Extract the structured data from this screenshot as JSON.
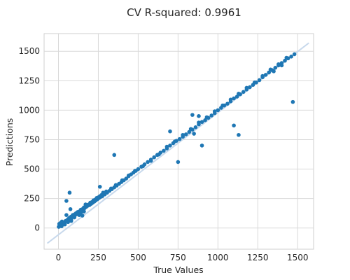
{
  "chart_data": {
    "type": "scatter",
    "title": "CV R-squared: 0.9961",
    "xlabel": "True Values",
    "ylabel": "Predictions",
    "xlim": [
      -90,
      1600
    ],
    "ylim": [
      -180,
      1650
    ],
    "xticks": [
      0,
      250,
      500,
      750,
      1000,
      1250,
      1500
    ],
    "yticks": [
      0,
      250,
      500,
      750,
      1000,
      1250,
      1500
    ],
    "grid": true,
    "reference_line": {
      "x": [
        -70,
        1570
      ],
      "y": [
        -130,
        1570
      ],
      "color": "#c8d9ec"
    },
    "point_color": "#1f77b4",
    "series": [
      {
        "x": [
          2,
          8,
          12,
          18,
          25,
          30,
          35,
          42,
          48,
          55,
          60,
          66,
          72,
          80,
          88,
          95,
          105,
          115,
          125,
          135,
          145,
          155,
          165,
          175,
          185,
          195,
          205,
          215,
          225,
          235,
          245,
          255,
          265,
          275,
          290,
          305,
          320,
          335,
          350,
          365,
          380,
          395,
          410,
          425,
          440,
          455,
          470,
          485,
          500,
          520,
          540,
          560,
          580,
          600,
          620,
          640,
          660,
          680,
          700,
          720,
          740,
          760,
          780,
          800,
          820,
          840,
          860,
          880,
          900,
          920,
          940,
          960,
          980,
          1000,
          1020,
          1040,
          1060,
          1080,
          1100,
          1120,
          1140,
          1160,
          1180,
          1200,
          1220,
          1240,
          1260,
          1280,
          1300,
          1320,
          1340,
          1360,
          1380,
          1400,
          1420,
          1440,
          1460,
          1480,
          30,
          45,
          60,
          78,
          90,
          110,
          130,
          150,
          170,
          190,
          210,
          230,
          250,
          270,
          300,
          330,
          360,
          400,
          440,
          480,
          530,
          580,
          630,
          680,
          730,
          780,
          830,
          880,
          930,
          980,
          1030,
          1080,
          1130,
          1180,
          1230,
          1280,
          1330,
          1380,
          1430,
          5,
          15,
          22,
          38,
          52,
          68,
          85,
          100,
          120,
          140,
          160,
          180,
          200,
          220,
          240,
          260,
          280,
          20,
          40,
          60,
          80,
          100,
          130,
          160,
          50,
          75,
          80,
          125,
          140,
          150,
          170,
          260,
          350,
          620,
          700,
          750,
          840,
          850,
          880,
          900,
          1100,
          1130,
          1470,
          50,
          70,
          1350,
          1400
        ],
        "y": [
          10,
          15,
          25,
          30,
          30,
          40,
          45,
          55,
          60,
          65,
          70,
          70,
          80,
          85,
          95,
          105,
          110,
          120,
          135,
          140,
          150,
          160,
          170,
          180,
          190,
          195,
          205,
          215,
          225,
          235,
          245,
          255,
          265,
          270,
          285,
          300,
          315,
          330,
          345,
          360,
          375,
          390,
          405,
          420,
          440,
          455,
          470,
          485,
          500,
          520,
          540,
          560,
          580,
          600,
          620,
          640,
          655,
          675,
          700,
          720,
          740,
          755,
          775,
          795,
          815,
          835,
          855,
          880,
          900,
          915,
          935,
          955,
          975,
          1000,
          1020,
          1040,
          1055,
          1075,
          1100,
          1115,
          1135,
          1155,
          1175,
          1195,
          1215,
          1235,
          1255,
          1280,
          1300,
          1320,
          1340,
          1360,
          1380,
          1400,
          1420,
          1440,
          1455,
          1475,
          45,
          60,
          75,
          95,
          110,
          125,
          140,
          160,
          180,
          200,
          220,
          240,
          260,
          280,
          310,
          335,
          365,
          405,
          445,
          485,
          525,
          570,
          625,
          690,
          735,
          790,
          840,
          895,
          940,
          990,
          1040,
          1090,
          1140,
          1190,
          1235,
          1290,
          1345,
          1390,
          1445,
          35,
          45,
          55,
          50,
          60,
          85,
          100,
          115,
          135,
          155,
          175,
          195,
          215,
          235,
          255,
          270,
          300,
          15,
          30,
          50,
          70,
          90,
          110,
          140,
          110,
          160,
          60,
          115,
          130,
          105,
          200,
          350,
          620,
          620,
          820,
          560,
          960,
          800,
          950,
          700,
          870,
          790,
          1070,
          230,
          300,
          1330,
          1380
        ]
      }
    ]
  }
}
